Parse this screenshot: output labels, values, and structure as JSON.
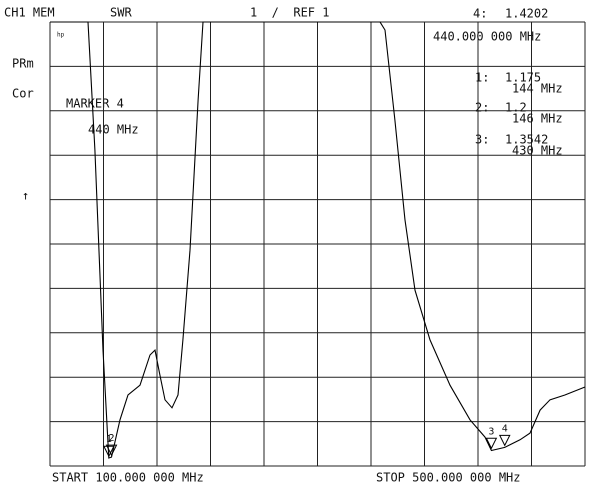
{
  "chart_data": {
    "type": "line",
    "header": {
      "channel": "CH1 MEM",
      "format": "SWR",
      "scale": "1  /  REF 1",
      "logo": "hp",
      "status_1": "PRm",
      "status_2": "Cor",
      "ref_arrow": "↑"
    },
    "start_label": "START 100.000 000 MHz",
    "stop_label": "STOP 500.000 000 MHz",
    "active_marker": {
      "title": "MARKER 4",
      "freq_label": "440.000 000 MHz"
    },
    "xlim": [
      100,
      500
    ],
    "ylim": [
      1,
      11
    ],
    "xticks": [
      100,
      140,
      180,
      220,
      260,
      300,
      340,
      380,
      420,
      460,
      500
    ],
    "yticks": [
      1,
      2,
      3,
      4,
      5,
      6,
      7,
      8,
      9,
      10,
      11
    ],
    "grid": true,
    "color": "#000000",
    "x": [
      100,
      128.4,
      133.6,
      139.6,
      144,
      146,
      152.3,
      158.3,
      167.3,
      174.8,
      178.5,
      182.2,
      186.0,
      191.2,
      195.7,
      199.4,
      204.7,
      210.7,
      214.4,
      346.7,
      350.5,
      357.9,
      365.4,
      372.9,
      384.1,
      399.1,
      414.0,
      425.2,
      430,
      440,
      451.4,
      458.9,
      466.4,
      473.8,
      485.0,
      500
    ],
    "values": [
      11,
      11,
      8.12,
      3.61,
      1.18,
      1.2,
      2.04,
      2.6,
      2.82,
      3.5,
      3.61,
      3.05,
      2.49,
      2.31,
      2.6,
      3.84,
      5.86,
      9.24,
      11,
      11,
      10.82,
      8.79,
      6.54,
      4.96,
      3.84,
      2.82,
      2.04,
      1.65,
      1.35,
      1.42,
      1.59,
      1.74,
      2.26,
      2.49,
      2.6,
      2.78
    ],
    "markers": {
      "names": [
        "1",
        "2",
        "3",
        "4"
      ],
      "ids": [
        "1:",
        "2:",
        "3:",
        "4:"
      ],
      "x": [
        144,
        146,
        430,
        440
      ],
      "values": [
        1.175,
        1.2,
        1.3542,
        1.4202
      ],
      "value_labels": [
        "1.175",
        "1.2",
        "1.3542",
        "1.4202"
      ],
      "freq_labels": [
        "144 MHz",
        "146 MHz",
        "430 MHz",
        "440 MHz"
      ]
    }
  }
}
